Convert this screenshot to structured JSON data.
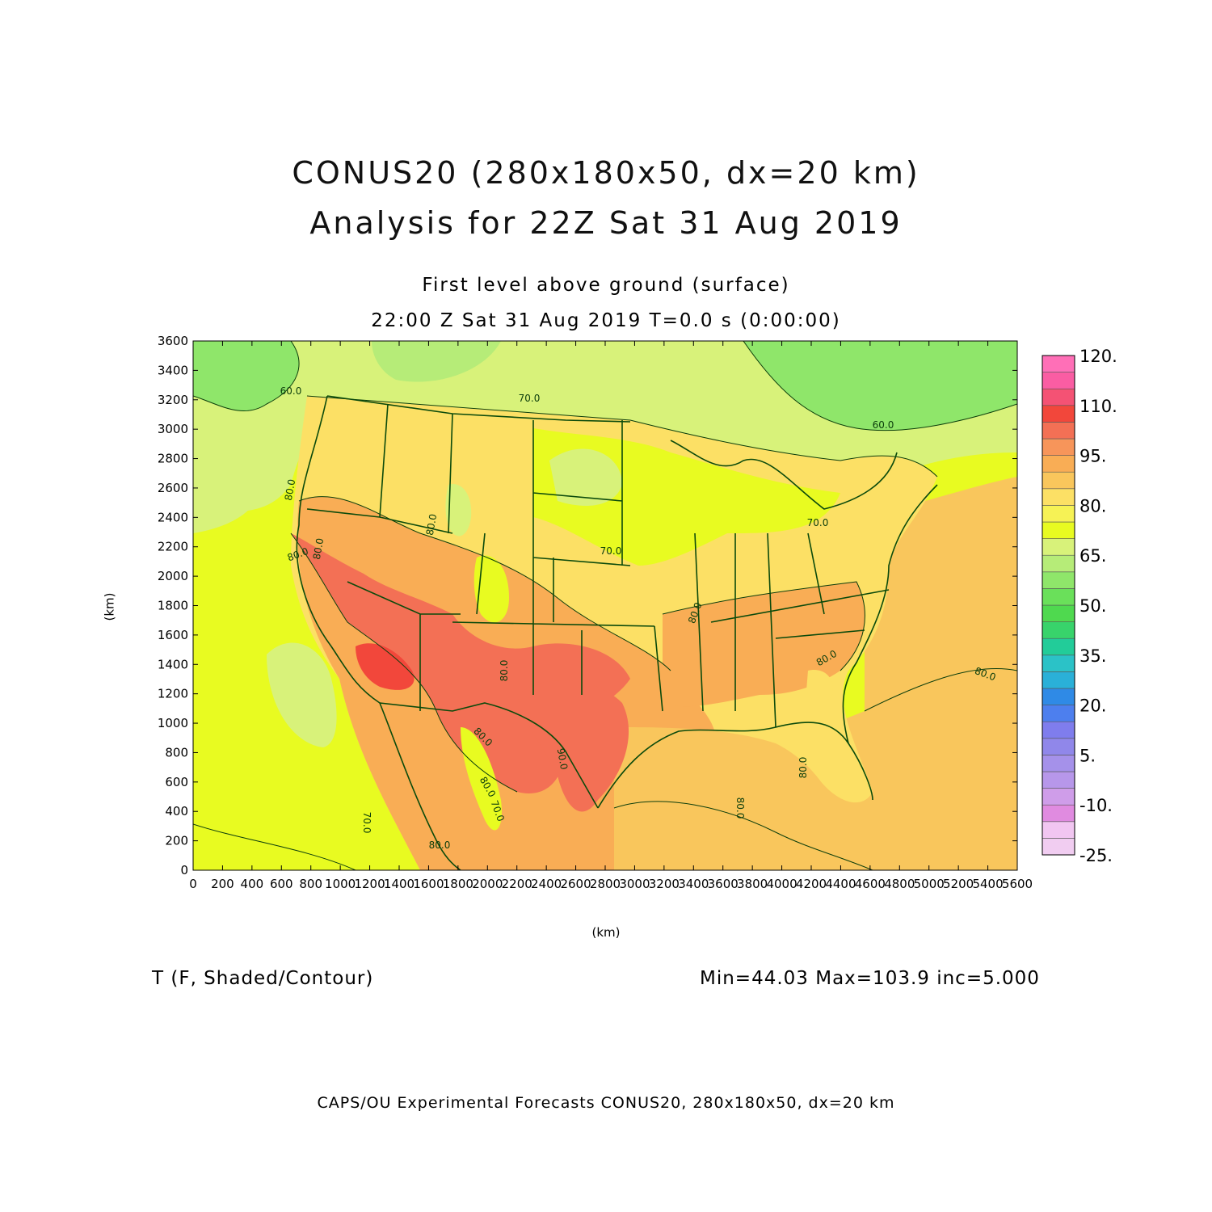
{
  "title_line1": "CONUS20 (280x180x50, dx=20 km)",
  "title_line2": "Analysis for 22Z Sat 31 Aug 2019",
  "subtitle_line1": "First level above ground (surface)",
  "subtitle_line2": "22:00 Z Sat 31 Aug 2019    T=0.0 s (0:00:00)",
  "x_axis": {
    "label": "(km)",
    "ticks": [
      "0",
      "200",
      "400",
      "600",
      "800",
      "1000",
      "1200",
      "1400",
      "1600",
      "1800",
      "2000",
      "2200",
      "2400",
      "2600",
      "2800",
      "3000",
      "3200",
      "3400",
      "3600",
      "3800",
      "4000",
      "4200",
      "4400",
      "4600",
      "4800",
      "5000",
      "5200",
      "5400",
      "5600"
    ]
  },
  "y_axis": {
    "label": "(km)",
    "ticks": [
      "0",
      "200",
      "400",
      "600",
      "800",
      "1000",
      "1200",
      "1400",
      "1600",
      "1800",
      "2000",
      "2200",
      "2400",
      "2600",
      "2800",
      "3000",
      "3200",
      "3400",
      "3600"
    ]
  },
  "colorbar": {
    "labels": [
      "120.",
      "110.",
      "95.",
      "80.",
      "65.",
      "50.",
      "35.",
      "20.",
      "5.",
      "-10.",
      "-25."
    ],
    "colors": [
      "#f1cdf1",
      "#f1c6f1",
      "#e08be0",
      "#cf9de9",
      "#b797ea",
      "#a591ea",
      "#9087ea",
      "#7f7ded",
      "#4d7fee",
      "#2f8ae6",
      "#2ab0d8",
      "#2bc2c7",
      "#22cc99",
      "#38d36b",
      "#4fd94f",
      "#6ae05a",
      "#8fe66a",
      "#b6ec78",
      "#d8f27a",
      "#e8fb21",
      "#f6f255",
      "#fce065",
      "#f9c65c",
      "#f9ad55",
      "#f7955a",
      "#f37055",
      "#f2473b",
      "#f45274",
      "#fa5da3",
      "#ff6fb7"
    ]
  },
  "contour_labels": [
    "60.0",
    "70.0",
    "60.0",
    "80.0",
    "80.0",
    "70.0",
    "80.0",
    "80.0",
    "80.0",
    "80.0",
    "80.0",
    "80.0",
    "90.0",
    "80.0",
    "80.0",
    "70.0",
    "70.0",
    "80.0",
    "70.0",
    "80.0",
    "80.0"
  ],
  "field_label": "T (F, Shaded/Contour)",
  "stats": "Min=44.03  Max=103.9  inc=5.000",
  "footer": "CAPS/OU Experimental Forecasts  CONUS20, 280x180x50, dx=20 km",
  "map_colors": {
    "ocean_west": "#e8fb21",
    "ocean_east": "#f9c65c",
    "canada": "#d8f27a",
    "canada_cool": "#8fe66a",
    "plains": "#fce065",
    "southwest": "#f9ad55",
    "hot": "#f37055",
    "hottest": "#f2473b",
    "contour": "#0b3d0b"
  }
}
